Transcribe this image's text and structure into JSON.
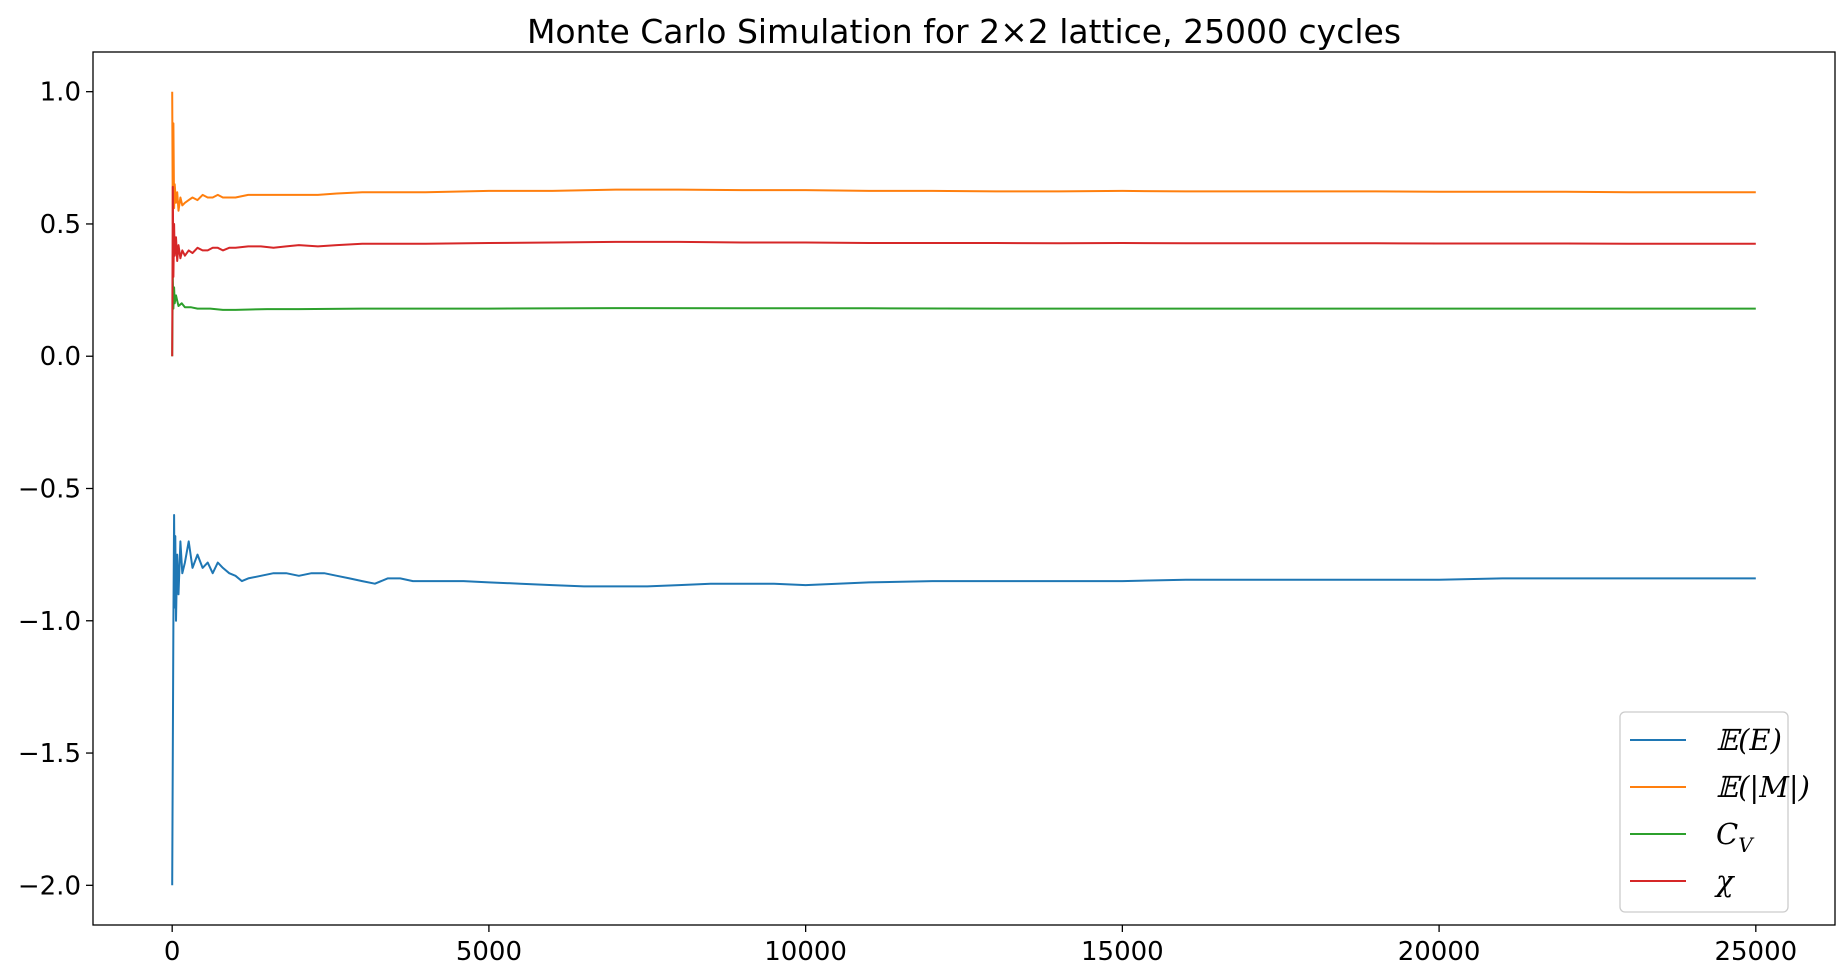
{
  "chart_data": {
    "type": "line",
    "title": "Monte Carlo Simulation for 2×2 lattice, 25000 cycles",
    "xlabel": "",
    "ylabel": "",
    "xlim": [
      -1250,
      26250
    ],
    "ylim": [
      -2.15,
      1.15
    ],
    "xticks": [
      0,
      5000,
      10000,
      15000,
      20000,
      25000
    ],
    "xtick_labels": [
      "0",
      "5000",
      "10000",
      "15000",
      "20000",
      "25000"
    ],
    "yticks": [
      1.0,
      0.5,
      0.0,
      -0.5,
      -1.0,
      -1.5,
      -2.0
    ],
    "ytick_labels": [
      "1.0",
      "0.5",
      "0.0",
      "−0.5",
      "−1.0",
      "−1.5",
      "−2.0"
    ],
    "grid": false,
    "legend_position": "lower-right",
    "series": [
      {
        "name": "𝔼(E)",
        "color": "#1f77b4",
        "x": [
          0,
          10,
          20,
          30,
          40,
          50,
          60,
          80,
          100,
          130,
          160,
          200,
          260,
          320,
          400,
          480,
          560,
          640,
          720,
          800,
          900,
          1000,
          1100,
          1200,
          1400,
          1600,
          1800,
          2000,
          2200,
          2400,
          2600,
          2800,
          3000,
          3200,
          3400,
          3600,
          3800,
          4000,
          4300,
          4600,
          5000,
          5500,
          6000,
          6500,
          7000,
          7500,
          8000,
          8500,
          9000,
          9500,
          10000,
          10500,
          11000,
          12000,
          13000,
          14000,
          15000,
          16000,
          17000,
          18000,
          19000,
          20000,
          21000,
          22000,
          23000,
          24000,
          25000
        ],
        "y": [
          -2.0,
          -1.5,
          -1.0,
          -0.6,
          -0.95,
          -0.68,
          -1.0,
          -0.75,
          -0.9,
          -0.7,
          -0.82,
          -0.78,
          -0.7,
          -0.8,
          -0.75,
          -0.8,
          -0.78,
          -0.82,
          -0.78,
          -0.8,
          -0.82,
          -0.83,
          -0.85,
          -0.84,
          -0.83,
          -0.82,
          -0.82,
          -0.83,
          -0.82,
          -0.82,
          -0.83,
          -0.84,
          -0.85,
          -0.86,
          -0.84,
          -0.84,
          -0.85,
          -0.85,
          -0.85,
          -0.85,
          -0.855,
          -0.86,
          -0.865,
          -0.87,
          -0.87,
          -0.87,
          -0.865,
          -0.86,
          -0.86,
          -0.86,
          -0.865,
          -0.86,
          -0.855,
          -0.85,
          -0.85,
          -0.85,
          -0.85,
          -0.845,
          -0.845,
          -0.845,
          -0.845,
          -0.845,
          -0.84,
          -0.84,
          -0.84,
          -0.84,
          -0.84
        ]
      },
      {
        "name": "𝔼(|M|)",
        "color": "#ff7f0e",
        "x": [
          0,
          10,
          20,
          30,
          40,
          60,
          80,
          100,
          130,
          160,
          200,
          260,
          320,
          400,
          480,
          560,
          640,
          720,
          800,
          900,
          1000,
          1200,
          1400,
          1600,
          1800,
          2000,
          2300,
          2600,
          3000,
          3500,
          4000,
          5000,
          6000,
          7000,
          8000,
          9000,
          10000,
          11000,
          12000,
          13000,
          14000,
          15000,
          16000,
          17000,
          18000,
          19000,
          20000,
          21000,
          22000,
          23000,
          24000,
          25000
        ],
        "y": [
          1.0,
          0.5,
          0.88,
          0.56,
          0.65,
          0.58,
          0.62,
          0.55,
          0.6,
          0.57,
          0.58,
          0.59,
          0.6,
          0.59,
          0.61,
          0.6,
          0.6,
          0.61,
          0.6,
          0.6,
          0.6,
          0.61,
          0.61,
          0.61,
          0.61,
          0.61,
          0.61,
          0.615,
          0.62,
          0.62,
          0.62,
          0.625,
          0.625,
          0.63,
          0.63,
          0.628,
          0.628,
          0.625,
          0.625,
          0.623,
          0.623,
          0.625,
          0.623,
          0.623,
          0.623,
          0.623,
          0.622,
          0.622,
          0.622,
          0.62,
          0.62,
          0.62
        ]
      },
      {
        "name": "C_V",
        "color": "#2ca02c",
        "x": [
          0,
          10,
          20,
          30,
          40,
          60,
          80,
          100,
          150,
          200,
          300,
          400,
          600,
          800,
          1000,
          1500,
          2000,
          3000,
          4000,
          5000,
          7000,
          9000,
          11000,
          13000,
          15000,
          17000,
          19000,
          21000,
          23000,
          25000
        ],
        "y": [
          0.0,
          0.3,
          0.18,
          0.26,
          0.2,
          0.23,
          0.21,
          0.19,
          0.2,
          0.185,
          0.185,
          0.18,
          0.18,
          0.175,
          0.175,
          0.178,
          0.178,
          0.18,
          0.18,
          0.18,
          0.182,
          0.181,
          0.181,
          0.18,
          0.18,
          0.18,
          0.18,
          0.18,
          0.18,
          0.18
        ]
      },
      {
        "name": "χ",
        "color": "#d62728",
        "x": [
          0,
          10,
          20,
          30,
          40,
          60,
          80,
          100,
          130,
          160,
          200,
          260,
          320,
          400,
          480,
          560,
          640,
          720,
          800,
          900,
          1000,
          1200,
          1400,
          1600,
          1800,
          2000,
          2300,
          2600,
          3000,
          3500,
          4000,
          5000,
          6000,
          7000,
          8000,
          9000,
          10000,
          11000,
          12000,
          13000,
          14000,
          15000,
          16000,
          17000,
          18000,
          19000,
          20000,
          21000,
          22000,
          23000,
          24000,
          25000
        ],
        "y": [
          0.0,
          0.64,
          0.3,
          0.5,
          0.38,
          0.45,
          0.36,
          0.42,
          0.37,
          0.4,
          0.38,
          0.4,
          0.39,
          0.41,
          0.4,
          0.4,
          0.41,
          0.41,
          0.4,
          0.41,
          0.41,
          0.415,
          0.415,
          0.41,
          0.415,
          0.42,
          0.415,
          0.42,
          0.425,
          0.425,
          0.425,
          0.428,
          0.43,
          0.432,
          0.432,
          0.43,
          0.43,
          0.428,
          0.428,
          0.428,
          0.427,
          0.428,
          0.427,
          0.427,
          0.427,
          0.427,
          0.426,
          0.426,
          0.426,
          0.425,
          0.425,
          0.425
        ]
      }
    ]
  }
}
